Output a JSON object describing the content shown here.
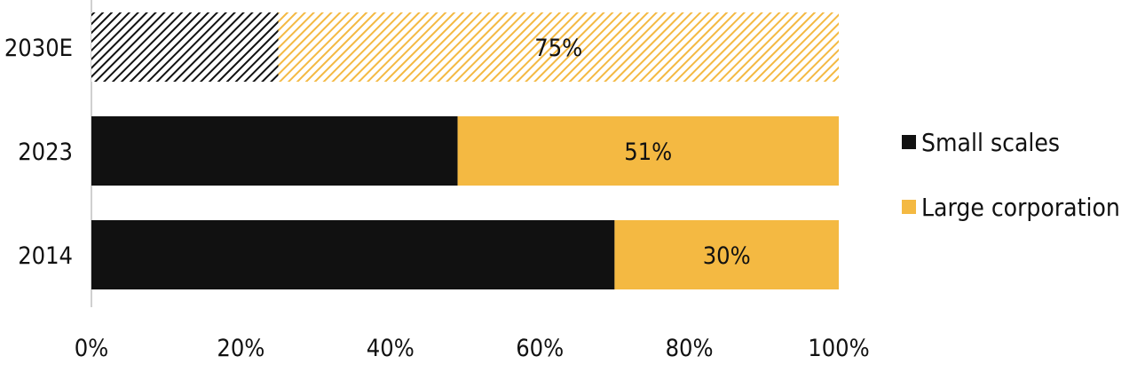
{
  "chart_data": {
    "type": "bar",
    "orientation": "horizontal",
    "stacked": true,
    "categories": [
      "2030E",
      "2023",
      "2014"
    ],
    "series": [
      {
        "name": "Small scales",
        "values": [
          25,
          49,
          70
        ],
        "color": "#111111"
      },
      {
        "name": "Large corporation",
        "values": [
          75,
          51,
          30
        ],
        "color": "#F4B942"
      }
    ],
    "hatched_categories": [
      "2030E"
    ],
    "data_labels": [
      "75%",
      "51%",
      "30%"
    ],
    "xlim": [
      0,
      100
    ],
    "x_ticks": [
      "0%",
      "20%",
      "40%",
      "60%",
      "80%",
      "100%"
    ],
    "grid": false,
    "legend_position": "right"
  }
}
